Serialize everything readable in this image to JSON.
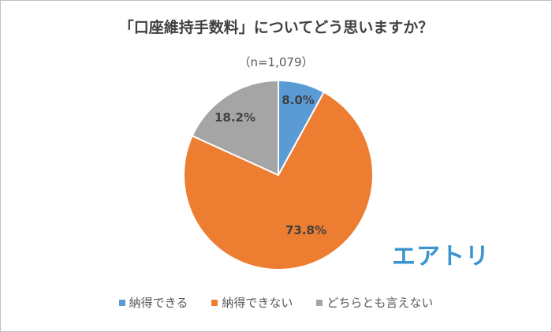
{
  "chart_data": {
    "type": "pie",
    "title": "「口座維持手数料」についてどう思いますか？",
    "subtitle": "（n=1,079）",
    "categories": [
      "納得できる",
      "納得できない",
      "どちらとも言えない"
    ],
    "values": [
      8.0,
      73.8,
      18.2
    ],
    "labels": [
      "8.0%",
      "73.8%",
      "18.2%"
    ],
    "colors": [
      "#5b9bd5",
      "#ed7d31",
      "#a5a5a5"
    ],
    "legend_position": "bottom"
  },
  "logo_text": "エアトリ"
}
